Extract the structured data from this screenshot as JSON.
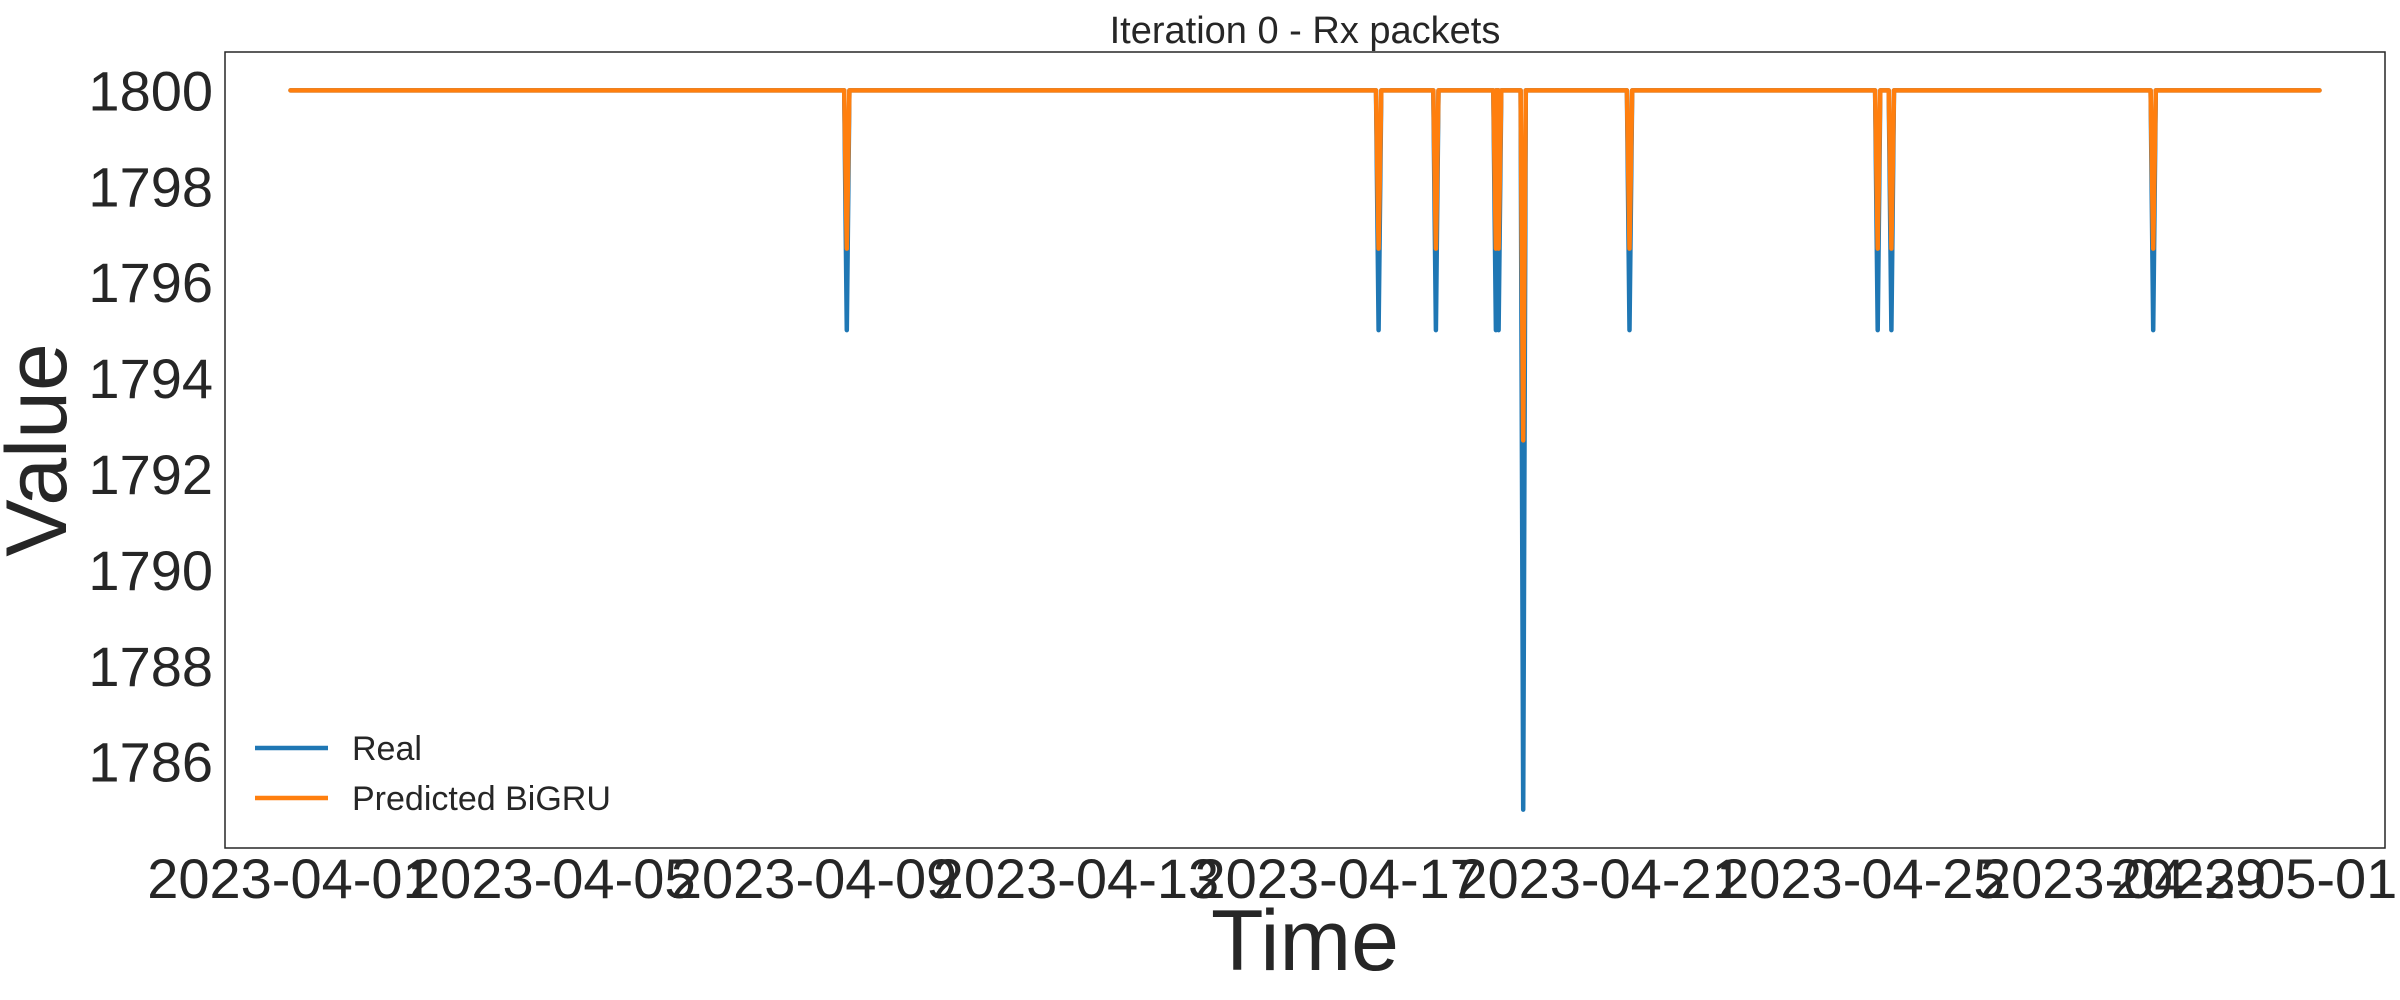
{
  "chart_data": {
    "type": "line",
    "title": "Iteration 0 - Rx packets",
    "xlabel": "Time",
    "ylabel": "Value",
    "grid": false,
    "legend_position": "lower-left",
    "x_range": [
      "2023-03-31",
      "2023-05-03"
    ],
    "ylim": [
      1784.2,
      1800.8
    ],
    "x_ticks": [
      "2023-04-01",
      "2023-04-05",
      "2023-04-09",
      "2023-04-13",
      "2023-04-17",
      "2023-04-21",
      "2023-04-25",
      "2023-04-29",
      "2023-05-01"
    ],
    "y_ticks": [
      1786,
      1788,
      1790,
      1792,
      1794,
      1796,
      1798,
      1800
    ],
    "x_start": "2023-04-01",
    "x_end": "2023-05-02",
    "baseline": 1800,
    "series": [
      {
        "name": "Real",
        "color": "#1f77b4",
        "baseline": 1800,
        "dips": [
          {
            "date": "2023-04-09 12:00",
            "value": 1795
          },
          {
            "date": "2023-04-17 15:00",
            "value": 1795
          },
          {
            "date": "2023-04-18 12:00",
            "value": 1795
          },
          {
            "date": "2023-04-19 10:00",
            "value": 1795
          },
          {
            "date": "2023-04-19 11:00",
            "value": 1795
          },
          {
            "date": "2023-04-19 20:00",
            "value": 1785
          },
          {
            "date": "2023-04-21 11:00",
            "value": 1795
          },
          {
            "date": "2023-04-25 06:00",
            "value": 1795
          },
          {
            "date": "2023-04-25 11:00",
            "value": 1795
          },
          {
            "date": "2023-04-29 11:00",
            "value": 1795
          }
        ]
      },
      {
        "name": "Predicted BiGRU",
        "color": "#ff7f0e",
        "baseline": 1800,
        "dips": [
          {
            "date": "2023-04-09 12:00",
            "value": 1796.7
          },
          {
            "date": "2023-04-17 15:00",
            "value": 1796.7
          },
          {
            "date": "2023-04-18 12:00",
            "value": 1796.7
          },
          {
            "date": "2023-04-19 10:00",
            "value": 1796.7
          },
          {
            "date": "2023-04-19 11:00",
            "value": 1796.7
          },
          {
            "date": "2023-04-19 20:00",
            "value": 1792.7
          },
          {
            "date": "2023-04-21 11:00",
            "value": 1796.7
          },
          {
            "date": "2023-04-25 06:00",
            "value": 1796.7
          },
          {
            "date": "2023-04-25 11:00",
            "value": 1796.7
          },
          {
            "date": "2023-04-29 11:00",
            "value": 1796.7
          }
        ]
      }
    ]
  }
}
